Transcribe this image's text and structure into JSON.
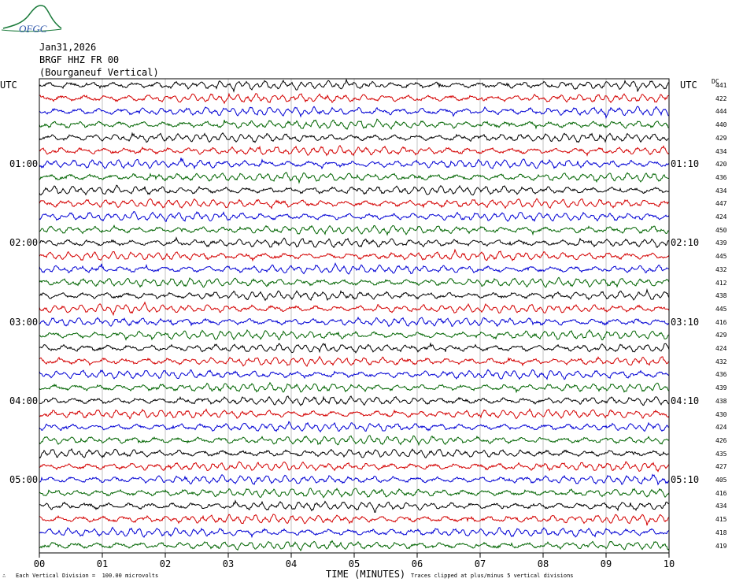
{
  "header": {
    "logo_text": "OFGC",
    "date": "Jan31,2026",
    "station": "BRGF HHZ FR 00",
    "location": "(Bourganeuf Vertical)"
  },
  "labels": {
    "left_tz": "UTC",
    "right_tz": "UTC",
    "dc_header": "DC"
  },
  "footer": {
    "scale_text": "Each Vertical Division =  100.00 microvolts",
    "clip_text": "Traces clipped at plus/minus 5 vertical divisions",
    "mark": "∴"
  },
  "colors": {
    "trace_cycle": [
      "#000000",
      "#d40000",
      "#0000d4",
      "#006400"
    ],
    "logo": "#1a7a3a",
    "logo_text": "#2850a8",
    "grid": "#9a9a9a"
  },
  "chart_data": {
    "type": "line",
    "title": "BRGF HHZ FR 00",
    "xlabel": "TIME (MINUTES)",
    "ylabel": "",
    "xlim": [
      0,
      10
    ],
    "x_ticks": [
      "00",
      "01",
      "02",
      "03",
      "04",
      "05",
      "06",
      "07",
      "08",
      "09",
      "10"
    ],
    "left_time_labels": [
      {
        "row": 0,
        "text": "UTC"
      },
      {
        "row": 6,
        "text": "01:00"
      },
      {
        "row": 12,
        "text": "02:00"
      },
      {
        "row": 18,
        "text": "03:00"
      },
      {
        "row": 24,
        "text": "04:00"
      },
      {
        "row": 30,
        "text": "05:00"
      }
    ],
    "right_time_labels": [
      {
        "row": 0,
        "text": "UTC"
      },
      {
        "row": 6,
        "text": "01:10"
      },
      {
        "row": 12,
        "text": "02:10"
      },
      {
        "row": 18,
        "text": "03:10"
      },
      {
        "row": 24,
        "text": "04:10"
      },
      {
        "row": 30,
        "text": "05:10"
      }
    ],
    "row_minutes": 10,
    "dc_offsets": [
      441,
      422,
      444,
      440,
      429,
      434,
      420,
      436,
      434,
      447,
      424,
      450,
      439,
      445,
      432,
      412,
      438,
      445,
      416,
      429,
      424,
      432,
      436,
      439,
      438,
      430,
      424,
      426,
      435,
      427,
      405,
      416,
      434,
      415,
      418,
      419
    ],
    "trace_clip_divisions": 5,
    "vertical_division_microvolts": 100.0,
    "grid": true
  }
}
